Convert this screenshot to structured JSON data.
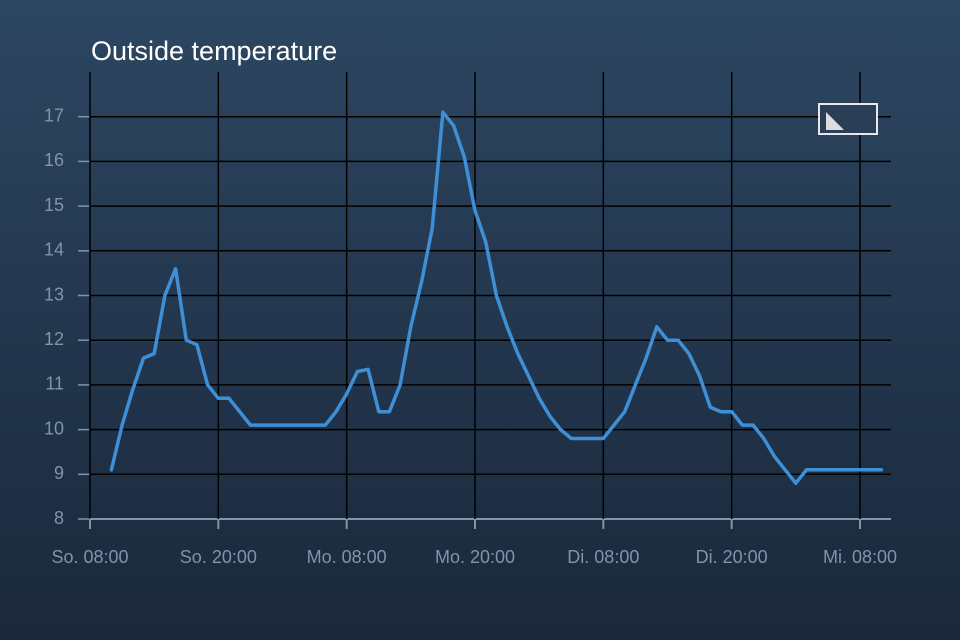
{
  "chart_data": {
    "type": "line",
    "title": "Outside temperature",
    "categories": [
      "So. 08:00",
      null,
      null,
      null,
      null,
      null,
      null,
      null,
      null,
      null,
      null,
      null,
      "So. 20:00",
      null,
      null,
      null,
      null,
      null,
      null,
      null,
      null,
      null,
      null,
      null,
      "Mo. 08:00",
      null,
      null,
      null,
      null,
      null,
      null,
      null,
      null,
      null,
      null,
      null,
      "Mo. 20:00",
      null,
      null,
      null,
      null,
      null,
      null,
      null,
      null,
      null,
      null,
      null,
      "Di. 08:00",
      null,
      null,
      null,
      null,
      null,
      null,
      null,
      null,
      null,
      null,
      null,
      "Di. 20:00",
      null,
      null,
      null,
      null,
      null,
      null,
      null,
      null,
      null,
      null,
      null,
      "Mi. 08:00",
      null,
      null
    ],
    "series": [
      {
        "name": "Outside temperature",
        "color": "#3f8fd6",
        "values": [
          null,
          null,
          9.1,
          10.1,
          10.9,
          11.6,
          11.7,
          13.0,
          13.6,
          12.0,
          11.9,
          11.0,
          10.7,
          10.7,
          10.4,
          10.1,
          10.1,
          10.1,
          10.1,
          10.1,
          10.1,
          10.1,
          10.1,
          10.4,
          10.8,
          11.3,
          11.35,
          10.4,
          10.4,
          11.0,
          12.3,
          13.3,
          14.5,
          17.1,
          16.8,
          16.1,
          14.9,
          14.2,
          13.0,
          12.3,
          11.7,
          11.2,
          10.7,
          10.3,
          10.0,
          9.8,
          9.8,
          9.8,
          9.8,
          10.1,
          10.4,
          11.0,
          11.6,
          12.3,
          12.0,
          12.0,
          11.7,
          11.2,
          10.5,
          10.4,
          10.4,
          10.1,
          10.1,
          9.8,
          9.4,
          9.1,
          8.8,
          9.1,
          9.1,
          9.1,
          9.1,
          9.1,
          9.1,
          9.1,
          9.1
        ]
      }
    ],
    "ylim": [
      8,
      18
    ],
    "yticks": [
      8,
      9,
      10,
      11,
      12,
      13,
      14,
      15,
      16,
      17
    ],
    "grid": true
  }
}
